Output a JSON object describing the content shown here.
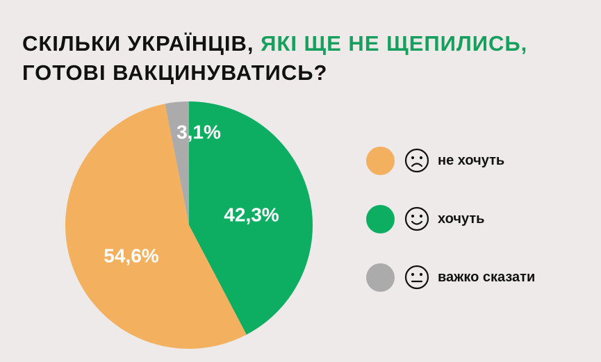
{
  "title": {
    "part1": "СКІЛЬКИ УКРАЇНЦІВ, ",
    "part2": "ЯКІ ЩЕ НЕ ЩЕПИЛИСЬ,",
    "line2": "ГОТОВІ ВАКЦИНУВАТИСЬ?"
  },
  "colors": {
    "background": "#eeeaea",
    "accent": "#17a05d"
  },
  "chart_data": {
    "type": "pie",
    "title": "СКІЛЬКИ УКРАЇНЦІВ, ЯКІ ЩЕ НЕ ЩЕПИЛИСЬ, ГОТОВІ ВАКЦИНУВАТИСЬ?",
    "slices": [
      {
        "name": "хочуть",
        "value": 42.3,
        "label": "42,3%",
        "color": "#0dad62",
        "icon": "smiling-face-icon"
      },
      {
        "name": "не хочуть",
        "value": 54.6,
        "label": "54,6%",
        "color": "#f3b15f",
        "icon": "frowning-face-icon"
      },
      {
        "name": "важко сказати",
        "value": 3.1,
        "label": "3,1%",
        "color": "#acabab",
        "icon": "neutral-face-icon"
      }
    ],
    "legend_order": [
      "не хочуть",
      "хочуть",
      "важко сказати"
    ],
    "legend_position": "right",
    "start": "top",
    "direction": "clockwise"
  }
}
